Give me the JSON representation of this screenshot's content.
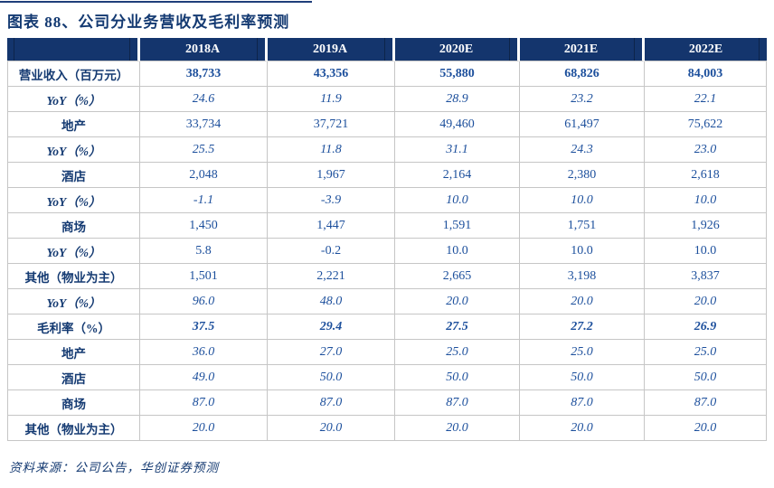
{
  "title": "图表 88、公司分业务营收及毛利率预测",
  "source_note": "资料来源：公司公告，华创证券预测",
  "colors": {
    "header_bg": "#14356d",
    "header_text": "#ffffff",
    "label_text": "#143a72",
    "value_text": "#1c4f9c",
    "grid_line": "#c6c6c6",
    "top_rule": "#1f3e7a"
  },
  "chart_data": {
    "type": "table",
    "title": "图表 88、公司分业务营收及毛利率预测",
    "columns": [
      "2018A",
      "2019A",
      "2020E",
      "2021E",
      "2022E"
    ],
    "rows": [
      {
        "label": "营业收入（百万元）",
        "label_align": "left",
        "label_italic": false,
        "value_style": "bold",
        "values": [
          "38,733",
          "43,356",
          "55,880",
          "68,826",
          "84,003"
        ]
      },
      {
        "label": "YoY（%）",
        "label_align": "left",
        "label_italic": true,
        "value_style": "italic",
        "values": [
          "24.6",
          "11.9",
          "28.9",
          "23.2",
          "22.1"
        ]
      },
      {
        "label": "地产",
        "label_align": "center",
        "label_italic": false,
        "value_style": "regular",
        "values": [
          "33,734",
          "37,721",
          "49,460",
          "61,497",
          "75,622"
        ]
      },
      {
        "label": "YoY（%）",
        "label_align": "right",
        "label_italic": true,
        "value_style": "italic",
        "values": [
          "25.5",
          "11.8",
          "31.1",
          "24.3",
          "23.0"
        ]
      },
      {
        "label": "酒店",
        "label_align": "center",
        "label_italic": false,
        "value_style": "regular",
        "values": [
          "2,048",
          "1,967",
          "2,164",
          "2,380",
          "2,618"
        ]
      },
      {
        "label": "YoY（%）",
        "label_align": "right",
        "label_italic": true,
        "value_style": "italic",
        "values": [
          "-1.1",
          "-3.9",
          "10.0",
          "10.0",
          "10.0"
        ]
      },
      {
        "label": "商场",
        "label_align": "center",
        "label_italic": false,
        "value_style": "regular",
        "values": [
          "1,450",
          "1,447",
          "1,591",
          "1,751",
          "1,926"
        ]
      },
      {
        "label": "YoY（%）",
        "label_align": "right",
        "label_italic": true,
        "value_style": "regular",
        "values": [
          "5.8",
          "-0.2",
          "10.0",
          "10.0",
          "10.0"
        ]
      },
      {
        "label": "其他（物业为主）",
        "label_align": "center",
        "label_italic": false,
        "value_style": "regular",
        "values": [
          "1,501",
          "2,221",
          "2,665",
          "3,198",
          "3,837"
        ]
      },
      {
        "label": "YoY（%）",
        "label_align": "right",
        "label_italic": true,
        "value_style": "italic",
        "values": [
          "96.0",
          "48.0",
          "20.0",
          "20.0",
          "20.0"
        ]
      },
      {
        "label": "毛利率（%）",
        "label_align": "left",
        "label_italic": false,
        "value_style": "bolditalic",
        "values": [
          "37.5",
          "29.4",
          "27.5",
          "27.2",
          "26.9"
        ]
      },
      {
        "label": "地产",
        "label_align": "center",
        "label_italic": false,
        "value_style": "italic",
        "values": [
          "36.0",
          "27.0",
          "25.0",
          "25.0",
          "25.0"
        ]
      },
      {
        "label": "酒店",
        "label_align": "center",
        "label_italic": false,
        "value_style": "italic",
        "values": [
          "49.0",
          "50.0",
          "50.0",
          "50.0",
          "50.0"
        ]
      },
      {
        "label": "商场",
        "label_align": "center",
        "label_italic": false,
        "value_style": "italic",
        "values": [
          "87.0",
          "87.0",
          "87.0",
          "87.0",
          "87.0"
        ]
      },
      {
        "label": "其他（物业为主）",
        "label_align": "center",
        "label_italic": false,
        "value_style": "italic",
        "values": [
          "20.0",
          "20.0",
          "20.0",
          "20.0",
          "20.0"
        ]
      }
    ]
  }
}
